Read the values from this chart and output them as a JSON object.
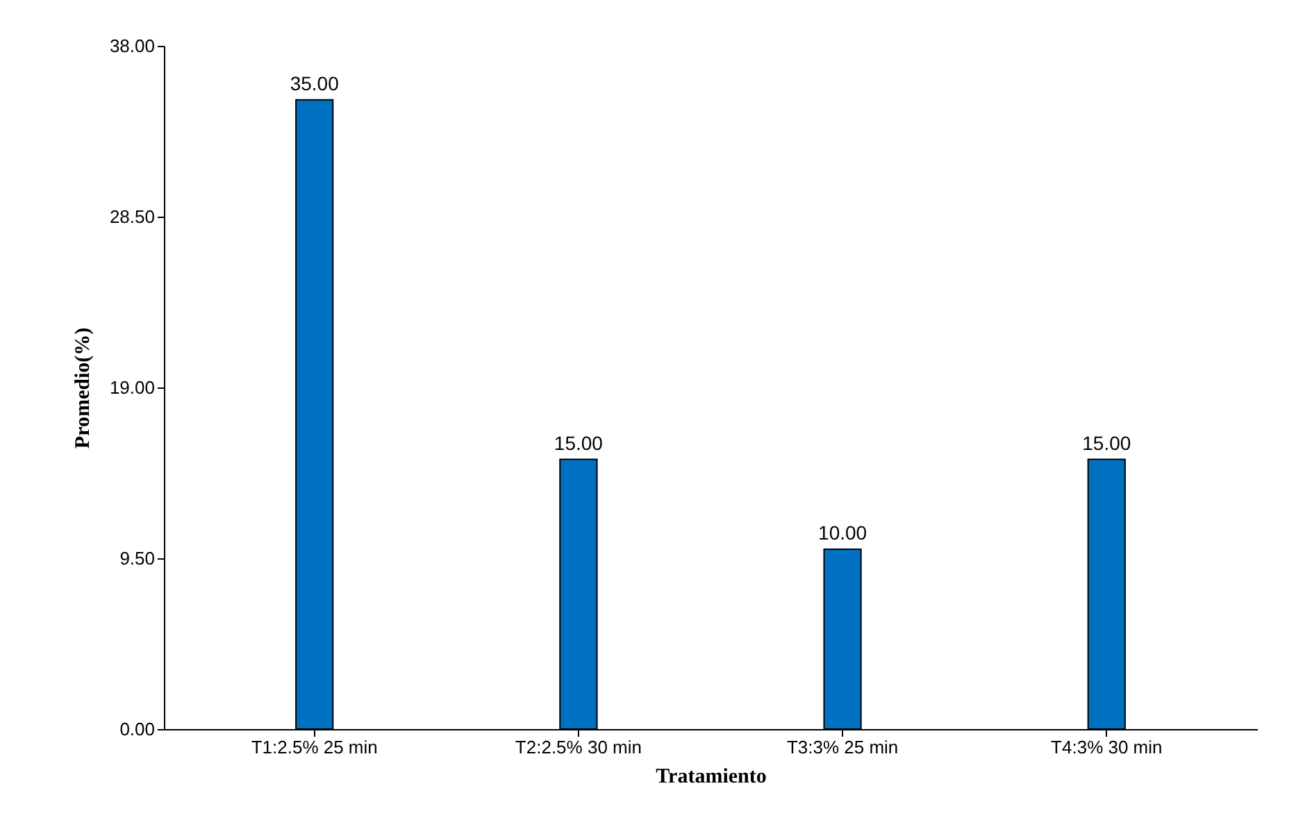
{
  "chart_data": {
    "type": "bar",
    "xlabel": "Tratamiento",
    "ylabel": "Promedio(%)",
    "categories": [
      "T1:2.5% 25 min",
      "T2:2.5% 30 min",
      "T3:3% 25 min",
      "T4:3% 30 min"
    ],
    "values": [
      35,
      15,
      10,
      15
    ],
    "value_labels": [
      "35.00",
      "15.00",
      "10.00",
      "15.00"
    ],
    "color": "#0070c0",
    "ylim": [
      0,
      38
    ],
    "yticks": [
      {
        "value": 0,
        "label": "0.00"
      },
      {
        "value": 9.5,
        "label": "9.50"
      },
      {
        "value": 19,
        "label": "19.00"
      },
      {
        "value": 28.5,
        "label": "28.50"
      },
      {
        "value": 38,
        "label": "38.00"
      }
    ],
    "grid": false
  }
}
